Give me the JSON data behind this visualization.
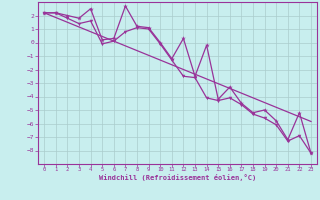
{
  "xlabel": "Windchill (Refroidissement éolien,°C)",
  "x_values": [
    0,
    1,
    2,
    3,
    4,
    5,
    6,
    7,
    8,
    9,
    10,
    11,
    12,
    13,
    14,
    15,
    16,
    17,
    18,
    19,
    20,
    21,
    22,
    23
  ],
  "y_series1": [
    2.2,
    2.2,
    2.0,
    1.8,
    2.5,
    0.2,
    0.3,
    2.7,
    1.2,
    1.1,
    0.0,
    -1.2,
    0.3,
    -2.5,
    -0.2,
    -4.2,
    -3.3,
    -4.5,
    -5.2,
    -5.0,
    -5.8,
    -7.2,
    -5.2,
    -8.2
  ],
  "y_series2": [
    2.2,
    2.2,
    1.8,
    1.4,
    1.6,
    -0.1,
    0.1,
    0.8,
    1.1,
    1.0,
    -0.1,
    -1.3,
    -2.5,
    -2.6,
    -4.1,
    -4.3,
    -4.1,
    -4.6,
    -5.3,
    -5.6,
    -6.1,
    -7.3,
    -6.9,
    -8.2
  ],
  "y_trend": [
    2.2,
    1.85,
    1.5,
    1.15,
    0.8,
    0.45,
    0.1,
    -0.25,
    -0.6,
    -0.95,
    -1.3,
    -1.65,
    -2.0,
    -2.35,
    -2.7,
    -3.05,
    -3.4,
    -3.75,
    -4.1,
    -4.45,
    -4.8,
    -5.15,
    -5.5,
    -5.85
  ],
  "line_color": "#993399",
  "bg_color": "#c8eeee",
  "grid_color": "#aacccc",
  "ylim": [
    -9,
    3
  ],
  "yticks": [
    2,
    1,
    0,
    -1,
    -2,
    -3,
    -4,
    -5,
    -6,
    -7,
    -8
  ],
  "xticks": [
    0,
    1,
    2,
    3,
    4,
    5,
    6,
    7,
    8,
    9,
    10,
    11,
    12,
    13,
    14,
    15,
    16,
    17,
    18,
    19,
    20,
    21,
    22,
    23
  ]
}
